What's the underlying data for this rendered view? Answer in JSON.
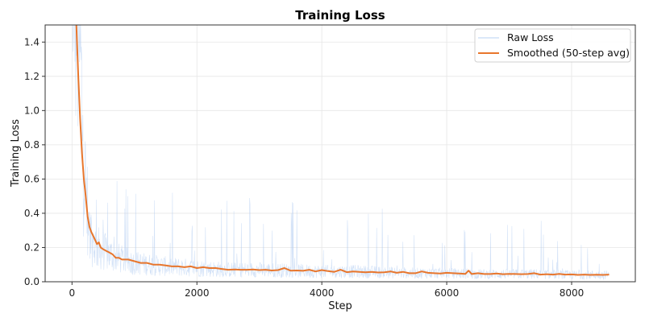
{
  "chart_data": {
    "type": "line",
    "title": "Training Loss",
    "xlabel": "Step",
    "ylabel": "Training Loss",
    "xlim": [
      -430,
      9020
    ],
    "ylim": [
      0,
      1.5
    ],
    "x_ticks": [
      0,
      2000,
      4000,
      6000,
      8000
    ],
    "x_tick_labels": [
      "0",
      "2000",
      "4000",
      "6000",
      "8000"
    ],
    "y_ticks": [
      0.0,
      0.2,
      0.4,
      0.6,
      0.8,
      1.0,
      1.2,
      1.4
    ],
    "y_tick_labels": [
      "0.0",
      "0.2",
      "0.4",
      "0.6",
      "0.8",
      "1.0",
      "1.2",
      "1.4"
    ],
    "grid": true,
    "legend_position": "upper right",
    "series": [
      {
        "name": "Raw Loss",
        "color": "#aecbf0",
        "style": "thin noisy line, low alpha",
        "x": [
          0,
          100,
          200,
          300,
          400,
          500,
          600,
          800,
          1000,
          1500,
          2000,
          2500,
          3000,
          3500,
          4000,
          4500,
          5000,
          5500,
          6000,
          6500,
          7000,
          7500,
          8000,
          8600
        ],
        "y": [
          2.5,
          1.6,
          0.6,
          0.25,
          0.2,
          0.18,
          0.16,
          0.13,
          0.11,
          0.09,
          0.08,
          0.07,
          0.07,
          0.065,
          0.06,
          0.06,
          0.055,
          0.05,
          0.05,
          0.045,
          0.045,
          0.045,
          0.04,
          0.04
        ],
        "spike_max_approx": 0.9
      },
      {
        "name": "Smoothed (50-step avg)",
        "color": "#e8762c",
        "style": "solid thick line",
        "x": [
          70,
          100,
          130,
          160,
          190,
          220,
          250,
          280,
          310,
          350,
          400,
          430,
          460,
          500,
          550,
          600,
          650,
          700,
          750,
          800,
          900,
          1000,
          1100,
          1200,
          1300,
          1400,
          1500,
          1600,
          1700,
          1800,
          1900,
          2000,
          2100,
          2200,
          2300,
          2400,
          2500,
          2600,
          2700,
          2800,
          2900,
          3000,
          3100,
          3200,
          3300,
          3400,
          3500,
          3600,
          3700,
          3800,
          3900,
          4000,
          4100,
          4200,
          4300,
          4400,
          4500,
          4600,
          4700,
          4800,
          4900,
          5000,
          5100,
          5200,
          5300,
          5400,
          5500,
          5600,
          5700,
          5800,
          5900,
          6000,
          6100,
          6200,
          6300,
          6350,
          6400,
          6500,
          6600,
          6700,
          6800,
          6900,
          7000,
          7100,
          7200,
          7300,
          7400,
          7500,
          7600,
          7700,
          7800,
          7900,
          8000,
          8100,
          8200,
          8300,
          8400,
          8500,
          8600
        ],
        "y": [
          1.5,
          1.2,
          0.95,
          0.75,
          0.6,
          0.5,
          0.38,
          0.32,
          0.29,
          0.26,
          0.22,
          0.23,
          0.2,
          0.19,
          0.18,
          0.17,
          0.16,
          0.14,
          0.14,
          0.13,
          0.13,
          0.12,
          0.11,
          0.11,
          0.1,
          0.1,
          0.095,
          0.09,
          0.09,
          0.085,
          0.09,
          0.08,
          0.085,
          0.08,
          0.08,
          0.075,
          0.07,
          0.072,
          0.07,
          0.07,
          0.072,
          0.068,
          0.07,
          0.066,
          0.068,
          0.08,
          0.065,
          0.066,
          0.064,
          0.07,
          0.06,
          0.068,
          0.062,
          0.058,
          0.07,
          0.056,
          0.06,
          0.058,
          0.055,
          0.058,
          0.054,
          0.055,
          0.06,
          0.052,
          0.058,
          0.05,
          0.05,
          0.06,
          0.052,
          0.05,
          0.048,
          0.052,
          0.05,
          0.048,
          0.046,
          0.065,
          0.045,
          0.05,
          0.045,
          0.045,
          0.048,
          0.044,
          0.046,
          0.045,
          0.044,
          0.045,
          0.05,
          0.042,
          0.044,
          0.042,
          0.046,
          0.042,
          0.043,
          0.04,
          0.042,
          0.04,
          0.041,
          0.04,
          0.042
        ]
      }
    ]
  },
  "legend": {
    "items": [
      {
        "label": "Raw Loss",
        "color": "#cfe0f7"
      },
      {
        "label": "Smoothed (50-step avg)",
        "color": "#e8762c"
      }
    ]
  }
}
